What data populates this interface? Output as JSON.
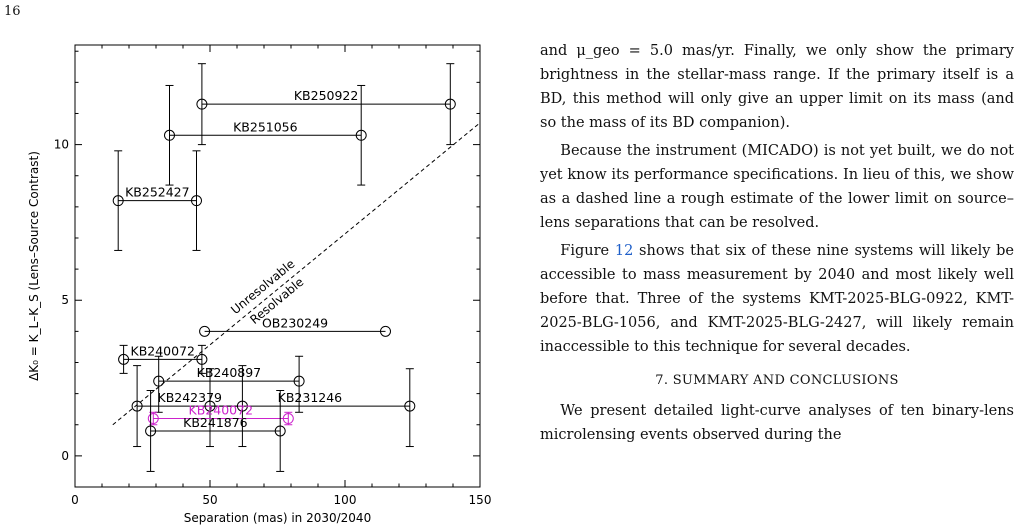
{
  "page_number": "16",
  "chart_data": {
    "type": "scatter",
    "title": "",
    "xlabel": "Separation (mas) in 2030/2040",
    "ylabel": "ΔK₀ = K_L–K_S (Lens–Source Contrast)",
    "xlim": [
      0,
      150
    ],
    "ylim": [
      -1,
      13.2
    ],
    "xticks": [
      0,
      50,
      100,
      150
    ],
    "yticks": [
      0,
      5,
      10
    ],
    "grid": false,
    "legend": "none",
    "events": [
      {
        "name": "KB250922",
        "x1": 47,
        "x2": 139,
        "y": 11.3,
        "err_lo": 1.3,
        "err_hi": 1.3,
        "color": "#000000"
      },
      {
        "name": "KB251056",
        "x1": 35,
        "x2": 106,
        "y": 10.3,
        "err_lo": 1.6,
        "err_hi": 1.6,
        "color": "#000000"
      },
      {
        "name": "KB252427",
        "x1": 16,
        "x2": 45,
        "y": 8.2,
        "err_lo": 1.6,
        "err_hi": 1.6,
        "color": "#000000"
      },
      {
        "name": "OB230249",
        "x1": 48,
        "x2": 115,
        "y": 4.0,
        "err_lo": 0.0,
        "err_hi": 0.0,
        "color": "#000000"
      },
      {
        "name": "KB240072",
        "x1": 18,
        "x2": 47,
        "y": 3.1,
        "err_lo": 0.45,
        "err_hi": 0.45,
        "color": "#000000"
      },
      {
        "name": "KB240897",
        "x1": 31,
        "x2": 83,
        "y": 2.4,
        "err_lo": 1.0,
        "err_hi": 0.8,
        "color": "#000000"
      },
      {
        "name": "KB242379",
        "x1": 23,
        "x2": 62,
        "y": 1.6,
        "err_lo": 1.3,
        "err_hi": 1.3,
        "color": "#000000"
      },
      {
        "name": "KB231246",
        "x1": 50,
        "x2": 124,
        "y": 1.6,
        "err_lo": 1.3,
        "err_hi": 1.2,
        "color": "#000000"
      },
      {
        "name": "KB240072",
        "x1": 29,
        "x2": 79,
        "y": 1.2,
        "err_lo": 0.2,
        "err_hi": 0.2,
        "color": "#cc22cc"
      },
      {
        "name": "KB241876",
        "x1": 28,
        "x2": 76,
        "y": 0.8,
        "err_lo": 1.3,
        "err_hi": 1.3,
        "color": "#000000"
      }
    ],
    "limit_line": {
      "x": [
        14,
        150
      ],
      "y": [
        1.0,
        10.7
      ]
    },
    "limit_labels": [
      "Unresolvable",
      "Resolvable"
    ]
  },
  "text": {
    "p1": "and μ_geo = 5.0 mas/yr. Finally, we only show the primary brightness in the stellar-mass range. If the primary itself is a BD, this method will only give an upper limit on its mass (and so the mass of its BD companion).",
    "p2": "Because the instrument (MICADO) is not yet built, we do not yet know its performance specifications. In lieu of this, we show as a dashed line a rough estimate of the lower limit on source–lens separations that can be resolved.",
    "p3_pre": "Figure ",
    "p3_ref": "12",
    "p3_post": " shows that six of these nine systems will likely be accessible to mass measurement by 2040 and most likely well before that. Three of the systems KMT-2025-BLG-0922, KMT-2025-BLG-1056, and KMT-2025-BLG-2427, will likely remain inaccessible to this technique for several decades.",
    "section_heading": "7. SUMMARY AND CONCLUSIONS",
    "p4": "We present detailed light-curve analyses of ten binary-lens microlensing events observed during the"
  }
}
